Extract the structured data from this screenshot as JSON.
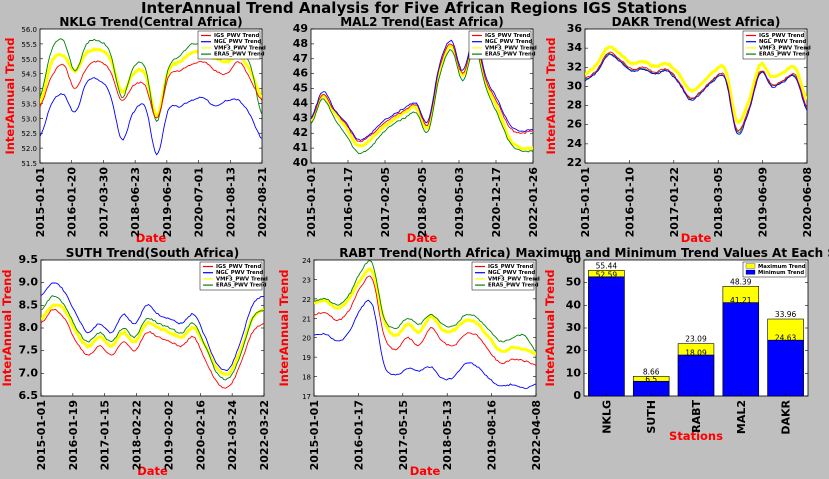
{
  "figure": {
    "title": "InterAnnual Trend Analysis for Five African Regions IGS Stations"
  },
  "colors": {
    "IGS": "#ff0000",
    "NGL": "#0000ff",
    "VMF3": "#ffff00",
    "ERA5": "#008000",
    "max_bar": "#ffff00",
    "min_bar": "#0000ff",
    "figure_bg": "#bfbfbf"
  },
  "chart_data": [
    {
      "type": "line",
      "title": "NKLG Trend(Central Africa)",
      "xlabel": "Date",
      "ylabel": "InterAnnual Trend",
      "x_start": "2015-01-01",
      "x_end": "2022-08-21",
      "xticks": [
        "2015-01-01",
        "2016-01-20",
        "2017-03-30",
        "2018-06-23",
        "2019-06-29",
        "2020-07-01",
        "2021-08-13",
        "2022-08-21"
      ],
      "yticks": [
        "51.5",
        "52.0",
        "52.5",
        "53.0",
        "53.5",
        "54.0",
        "54.5",
        "55.0",
        "55.5",
        "56.0"
      ],
      "ylim": [
        51.5,
        56.0
      ],
      "legend_position": "upper right",
      "series": [
        {
          "name": "IGS_PWV Trend",
          "values": [
            53.4,
            54.4,
            54.8,
            54.0,
            54.7,
            54.9,
            54.6,
            53.6,
            54.1,
            54.1,
            53.0,
            54.4,
            54.6,
            54.8,
            54.9,
            54.6,
            54.5,
            54.9,
            54.3,
            53.6
          ]
        },
        {
          "name": "NGL_PWV Trend",
          "values": [
            52.4,
            53.5,
            53.8,
            53.2,
            54.2,
            54.3,
            53.8,
            52.3,
            53.2,
            53.4,
            51.8,
            53.3,
            53.4,
            53.6,
            53.7,
            53.4,
            53.6,
            53.6,
            53.1,
            52.3
          ]
        },
        {
          "name": "VMF3_PWV Trend",
          "values": [
            53.5,
            54.9,
            55.1,
            54.6,
            55.2,
            55.3,
            55.0,
            53.9,
            54.5,
            54.5,
            53.1,
            54.6,
            54.9,
            55.2,
            55.2,
            55.0,
            54.9,
            55.1,
            54.6,
            53.7
          ]
        },
        {
          "name": "ERA5_PWV Trend",
          "values": [
            53.7,
            55.3,
            55.6,
            54.6,
            55.5,
            55.6,
            55.2,
            53.7,
            54.7,
            54.7,
            52.9,
            54.7,
            55.1,
            55.5,
            55.4,
            55.0,
            55.1,
            55.3,
            54.8,
            53.1
          ]
        }
      ]
    },
    {
      "type": "line",
      "title": "MAL2 Trend(East Africa)",
      "xlabel": "Date",
      "ylabel": "",
      "x_start": "2015-01-01",
      "x_end": "2022-01-26",
      "xticks": [
        "2015-01-01",
        "2016-01-17",
        "2017-02-05",
        "2018-02-05",
        "2019-05-03",
        "2020-12-17",
        "2022-01-26"
      ],
      "yticks": [
        "40",
        "41",
        "42",
        "43",
        "44",
        "45",
        "46",
        "47",
        "48",
        "49"
      ],
      "ylim": [
        40,
        49
      ],
      "legend_position": "upper right",
      "series": [
        {
          "name": "IGS_PWV Trend",
          "values": [
            42.9,
            44.6,
            43.5,
            42.6,
            41.5,
            41.8,
            42.5,
            43.1,
            43.5,
            43.9,
            42.6,
            46.4,
            48.0,
            46.0,
            48.3,
            45.5,
            44.0,
            42.4,
            42.0,
            42.2
          ]
        },
        {
          "name": "NGL_PWV Trend",
          "values": [
            43.0,
            44.8,
            43.6,
            42.7,
            41.6,
            41.9,
            42.7,
            43.2,
            43.7,
            44.0,
            42.8,
            46.6,
            48.2,
            46.2,
            48.5,
            45.7,
            44.2,
            42.6,
            42.1,
            42.3
          ]
        },
        {
          "name": "VMF3_PWV Trend",
          "values": [
            42.8,
            44.5,
            43.4,
            42.4,
            41.2,
            41.5,
            42.3,
            42.9,
            43.4,
            43.7,
            42.4,
            46.2,
            47.9,
            45.9,
            48.1,
            45.3,
            43.6,
            41.6,
            41.0,
            41.0
          ]
        },
        {
          "name": "ERA5_PWV Trend",
          "values": [
            42.6,
            44.3,
            43.0,
            41.9,
            40.7,
            41.0,
            41.9,
            42.6,
            43.0,
            43.4,
            42.1,
            45.8,
            47.6,
            45.5,
            47.7,
            45.0,
            43.2,
            41.4,
            40.8,
            40.8
          ]
        }
      ]
    },
    {
      "type": "line",
      "title": "DAKR Trend(West Africa)",
      "xlabel": "Date",
      "ylabel": "InterAnnual Trend",
      "x_start": "2015-01-01",
      "x_end": "2020-06-08",
      "xticks": [
        "2015-01-01",
        "2016-01-10",
        "2017-01-22",
        "2018-03-05",
        "2019-06-09",
        "2020-06-08"
      ],
      "yticks": [
        "22",
        "24",
        "26",
        "28",
        "30",
        "32",
        "34",
        "36"
      ],
      "ylim": [
        22,
        36
      ],
      "legend_position": "upper right",
      "series": [
        {
          "name": "IGS_PWV Trend",
          "values": [
            30.8,
            31.7,
            33.5,
            32.8,
            31.8,
            32.0,
            31.5,
            31.8,
            30.6,
            28.8,
            29.6,
            30.8,
            31.0,
            25.5,
            27.6,
            31.6,
            30.2,
            30.7,
            31.2,
            27.8
          ]
        },
        {
          "name": "NGL_PWV Trend",
          "values": [
            30.6,
            31.5,
            33.3,
            32.6,
            31.6,
            31.8,
            31.3,
            31.6,
            30.4,
            28.6,
            29.4,
            30.6,
            30.8,
            25.1,
            27.3,
            31.4,
            30.0,
            30.5,
            31.0,
            27.5
          ]
        },
        {
          "name": "VMF3_PWV Trend",
          "values": [
            31.3,
            32.3,
            34.1,
            33.4,
            32.4,
            32.6,
            32.1,
            32.4,
            31.3,
            29.6,
            30.3,
            31.5,
            31.8,
            26.4,
            28.4,
            32.3,
            31.0,
            31.5,
            31.9,
            28.6
          ]
        },
        {
          "name": "ERA5_PWV Trend",
          "values": [
            30.7,
            31.6,
            33.4,
            32.7,
            31.7,
            31.9,
            31.4,
            31.7,
            30.5,
            28.7,
            29.5,
            30.7,
            30.9,
            25.3,
            27.5,
            31.5,
            30.1,
            30.6,
            31.1,
            27.7
          ]
        }
      ]
    },
    {
      "type": "line",
      "title": "SUTH Trend(South Africa)",
      "xlabel": "Date",
      "ylabel": "InterAnnual Trend",
      "x_start": "2015-01-01",
      "x_end": "2022-03-22",
      "xticks": [
        "2015-01-01",
        "2016-01-19",
        "2017-01-15",
        "2018-02-22",
        "2019-02-02",
        "2020-02-16",
        "2021-03-24",
        "2022-03-22"
      ],
      "yticks": [
        "6.5",
        "7.0",
        "7.5",
        "8.0",
        "8.5",
        "9.0",
        "9.5"
      ],
      "ylim": [
        6.5,
        9.5
      ],
      "legend_position": "upper right",
      "series": [
        {
          "name": "IGS_PWV Trend",
          "values": [
            8.1,
            8.4,
            8.2,
            7.7,
            7.4,
            7.6,
            7.4,
            7.7,
            7.5,
            7.9,
            7.8,
            7.7,
            7.6,
            7.8,
            7.3,
            6.8,
            6.7,
            7.2,
            7.9,
            8.1
          ]
        },
        {
          "name": "NGL_PWV Trend",
          "values": [
            8.7,
            9.0,
            8.8,
            8.3,
            7.9,
            8.1,
            7.9,
            8.3,
            8.1,
            8.5,
            8.3,
            8.2,
            8.1,
            8.3,
            7.8,
            7.2,
            7.1,
            7.7,
            8.5,
            8.7
          ]
        },
        {
          "name": "VMF3_PWV Trend",
          "values": [
            8.2,
            8.5,
            8.4,
            7.9,
            7.6,
            7.8,
            7.6,
            7.9,
            7.7,
            8.1,
            8.0,
            7.9,
            7.8,
            8.0,
            7.6,
            7.1,
            7.0,
            7.5,
            8.2,
            8.4
          ]
        },
        {
          "name": "ERA5_PWV Trend",
          "values": [
            8.4,
            8.7,
            8.5,
            8.0,
            7.7,
            7.9,
            7.7,
            8.0,
            7.8,
            8.2,
            8.1,
            8.0,
            7.9,
            8.1,
            7.6,
            7.0,
            6.9,
            7.4,
            8.2,
            8.4
          ]
        }
      ]
    },
    {
      "type": "line",
      "title": "RABT Trend(North Africa)",
      "xlabel": "Date",
      "ylabel": "InterAnnual Trend",
      "x_start": "2015-01-01",
      "x_end": "2022-04-08",
      "xticks": [
        "2015-01-01",
        "2016-01-17",
        "2017-05-15",
        "2018-05-13",
        "2019-08-16",
        "2022-04-08"
      ],
      "yticks": [
        "17",
        "18",
        "19",
        "20",
        "21",
        "22",
        "23",
        "24"
      ],
      "ylim": [
        17,
        24
      ],
      "legend_position": "upper right",
      "series": [
        {
          "name": "IGS_PWV Trend",
          "values": [
            21.2,
            21.3,
            20.9,
            21.4,
            22.6,
            23.0,
            20.1,
            19.4,
            20.0,
            19.6,
            20.5,
            19.8,
            19.6,
            20.2,
            20.1,
            19.3,
            18.7,
            18.9,
            18.8,
            18.6
          ]
        },
        {
          "name": "NGL_PWV Trend",
          "values": [
            20.1,
            20.2,
            19.8,
            20.3,
            21.5,
            21.7,
            18.6,
            18.1,
            18.4,
            18.3,
            18.5,
            17.9,
            18.0,
            18.7,
            18.5,
            17.9,
            17.5,
            17.6,
            17.4,
            17.6
          ]
        },
        {
          "name": "VMF3_PWV Trend",
          "values": [
            21.8,
            21.9,
            21.5,
            22.0,
            23.0,
            23.4,
            20.9,
            20.1,
            20.7,
            20.3,
            21.1,
            20.4,
            20.4,
            20.9,
            20.7,
            20.0,
            19.3,
            19.5,
            19.4,
            19.2
          ]
        },
        {
          "name": "ERA5_PWV Trend",
          "values": [
            21.9,
            22.0,
            21.7,
            22.2,
            23.4,
            23.8,
            21.0,
            20.5,
            21.0,
            20.7,
            21.2,
            20.7,
            20.6,
            21.2,
            21.0,
            20.4,
            19.8,
            20.0,
            20.1,
            19.3
          ]
        }
      ]
    },
    {
      "type": "bar",
      "title": "Maximum and Minimum Trend Values At Each Station",
      "xlabel": "Stations",
      "ylabel": "InterAnnual Trend",
      "categories": [
        "NKLG",
        "SUTH",
        "RABT",
        "MAL2",
        "DAKR"
      ],
      "yticks": [
        "0",
        "10",
        "20",
        "30",
        "40",
        "50",
        "60"
      ],
      "ylim": [
        0,
        60
      ],
      "legend_position": "upper right",
      "series": [
        {
          "name": "Maximum Trend",
          "values": [
            55.44,
            8.66,
            23.09,
            48.39,
            33.96
          ],
          "labels": [
            "55.44",
            "8.66",
            "23.09",
            "48.39",
            "33.96"
          ]
        },
        {
          "name": "Minimum Trend",
          "values": [
            52.59,
            6.5,
            18.09,
            41.21,
            24.63
          ],
          "labels": [
            "52.59",
            "6.5",
            "18.09",
            "41.21",
            "24.63"
          ]
        }
      ]
    }
  ]
}
